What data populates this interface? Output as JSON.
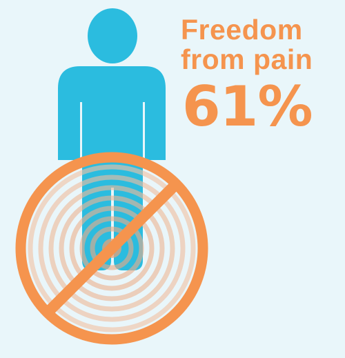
{
  "headline": {
    "line1": "Freedom",
    "line2": "from pain",
    "value": "61%"
  },
  "colors": {
    "background": "#e9f6fa",
    "person": "#2bbcdf",
    "accent": "#f5944e",
    "pain_rings": "#eab89e"
  },
  "icons": {
    "person": "person-icon",
    "no_symbol": "prohibition-icon",
    "pain": "pain-rings-icon"
  }
}
